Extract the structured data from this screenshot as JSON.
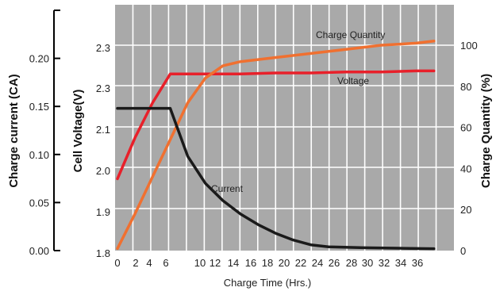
{
  "chart_data": {
    "type": "line",
    "xlabel": "Charge Time (Hrs.)",
    "x_ticks": [
      "0",
      "2",
      "4",
      "6",
      "10",
      "12",
      "14",
      "16",
      "18",
      "20",
      "22",
      "24",
      "26",
      "28",
      "30",
      "32",
      "34",
      "36"
    ],
    "xlim": [
      0,
      38
    ],
    "y_left_outer": {
      "label": "Charge current (CA)",
      "ticks": [
        "0.00",
        "0.05",
        "0.10",
        "0.15",
        "0.20"
      ],
      "ylim": [
        0,
        0.25
      ]
    },
    "y_left_inner": {
      "label": "Cell Voltage(V)",
      "ticks": [
        "1.8",
        "1.9",
        "2.0",
        "2.1",
        "2.3",
        "2.3"
      ]
    },
    "y_right": {
      "label": "Charge Quantity (%)",
      "ticks": [
        "0",
        "20",
        "40",
        "60",
        "80",
        "100"
      ],
      "ylim": [
        0,
        100
      ]
    },
    "series": [
      {
        "name": "Voltage",
        "color": "#e8202a",
        "x": [
          0,
          2,
          4,
          6,
          10,
          14,
          18,
          22,
          26,
          30,
          34,
          36
        ],
        "y_right_scale": [
          35,
          55,
          72,
          86,
          86,
          86,
          86.5,
          86.5,
          87,
          87,
          87.5,
          87.5
        ]
      },
      {
        "name": "Charge Quantity",
        "color": "#f07030",
        "x": [
          0,
          2,
          4,
          6,
          8,
          10,
          12,
          14,
          18,
          22,
          26,
          30,
          34,
          36
        ],
        "y": [
          1,
          18,
          36,
          54,
          72,
          84,
          90,
          92,
          94,
          96,
          98,
          100,
          101,
          102
        ]
      },
      {
        "name": "Current",
        "color": "#1a1a1a",
        "x": [
          0,
          6,
          8,
          10,
          12,
          14,
          16,
          18,
          20,
          22,
          24,
          28,
          32,
          36
        ],
        "y": [
          0.148,
          0.148,
          0.098,
          0.07,
          0.052,
          0.038,
          0.027,
          0.018,
          0.011,
          0.006,
          0.004,
          0.003,
          0.0025,
          0.002
        ]
      }
    ]
  }
}
